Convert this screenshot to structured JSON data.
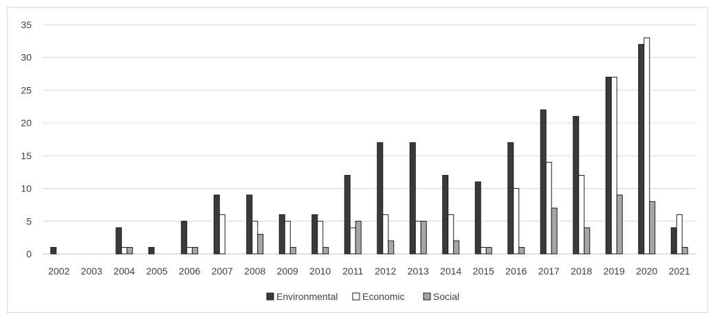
{
  "chart_data": {
    "type": "bar",
    "title": "",
    "xlabel": "",
    "ylabel": "",
    "categories": [
      "2002",
      "2003",
      "2004",
      "2005",
      "2006",
      "2007",
      "2008",
      "2009",
      "2010",
      "2011",
      "2012",
      "2013",
      "2014",
      "2015",
      "2016",
      "2017",
      "2018",
      "2019",
      "2020",
      "2021"
    ],
    "series": [
      {
        "name": "Environmental",
        "color": "#3a3a3a",
        "values": [
          1,
          0,
          4,
          1,
          5,
          9,
          9,
          6,
          6,
          12,
          17,
          17,
          12,
          11,
          17,
          22,
          21,
          27,
          32,
          4
        ]
      },
      {
        "name": "Economic",
        "color": "#ffffff",
        "values": [
          0,
          0,
          1,
          0,
          1,
          6,
          5,
          5,
          5,
          4,
          6,
          5,
          6,
          1,
          10,
          14,
          12,
          27,
          33,
          6
        ]
      },
      {
        "name": "Social",
        "color": "#a6a6a6",
        "values": [
          0,
          0,
          1,
          0,
          1,
          0,
          3,
          1,
          1,
          5,
          2,
          5,
          2,
          1,
          1,
          7,
          4,
          9,
          8,
          1
        ]
      }
    ],
    "ylim": [
      0,
      35
    ],
    "yticks": [
      0,
      5,
      10,
      15,
      20,
      25,
      30,
      35
    ],
    "grid": true,
    "legend_position": "bottom-center"
  }
}
